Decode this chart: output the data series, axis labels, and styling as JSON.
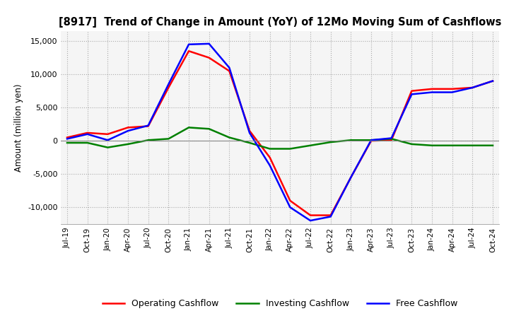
{
  "title": "[8917]  Trend of Change in Amount (YoY) of 12Mo Moving Sum of Cashflows",
  "ylabel": "Amount (million yen)",
  "ylim": [
    -12500,
    16500
  ],
  "yticks": [
    -10000,
    -5000,
    0,
    5000,
    10000,
    15000
  ],
  "x_labels": [
    "Jul-19",
    "Oct-19",
    "Jan-20",
    "Apr-20",
    "Jul-20",
    "Oct-20",
    "Jan-21",
    "Apr-21",
    "Jul-21",
    "Oct-21",
    "Jan-22",
    "Apr-22",
    "Jul-22",
    "Oct-22",
    "Jan-23",
    "Apr-23",
    "Jul-23",
    "Oct-23",
    "Jan-24",
    "Apr-24",
    "Jul-24",
    "Oct-24"
  ],
  "operating_cashflow": [
    500,
    1200,
    1000,
    2000,
    2200,
    8000,
    13500,
    12500,
    10500,
    1500,
    -2500,
    -9000,
    -11200,
    -11200,
    -5500,
    0,
    100,
    7500,
    7800,
    7800,
    8000,
    9000
  ],
  "investing_cashflow": [
    -300,
    -300,
    -1000,
    -500,
    100,
    300,
    2000,
    1800,
    500,
    -300,
    -1200,
    -1200,
    -700,
    -200,
    100,
    100,
    300,
    -500,
    -700,
    -700,
    -700,
    -700
  ],
  "free_cashflow": [
    300,
    1000,
    100,
    1500,
    2300,
    8500,
    14500,
    14600,
    11000,
    1200,
    -3700,
    -10000,
    -12000,
    -11400,
    -5500,
    100,
    400,
    7000,
    7300,
    7300,
    8000,
    9000
  ],
  "operating_color": "#ff0000",
  "investing_color": "#008000",
  "free_color": "#0000ff",
  "bg_color": "#ffffff",
  "plot_bg_color": "#f5f5f5",
  "grid_color": "#aaaaaa",
  "zeroline_color": "#888888"
}
